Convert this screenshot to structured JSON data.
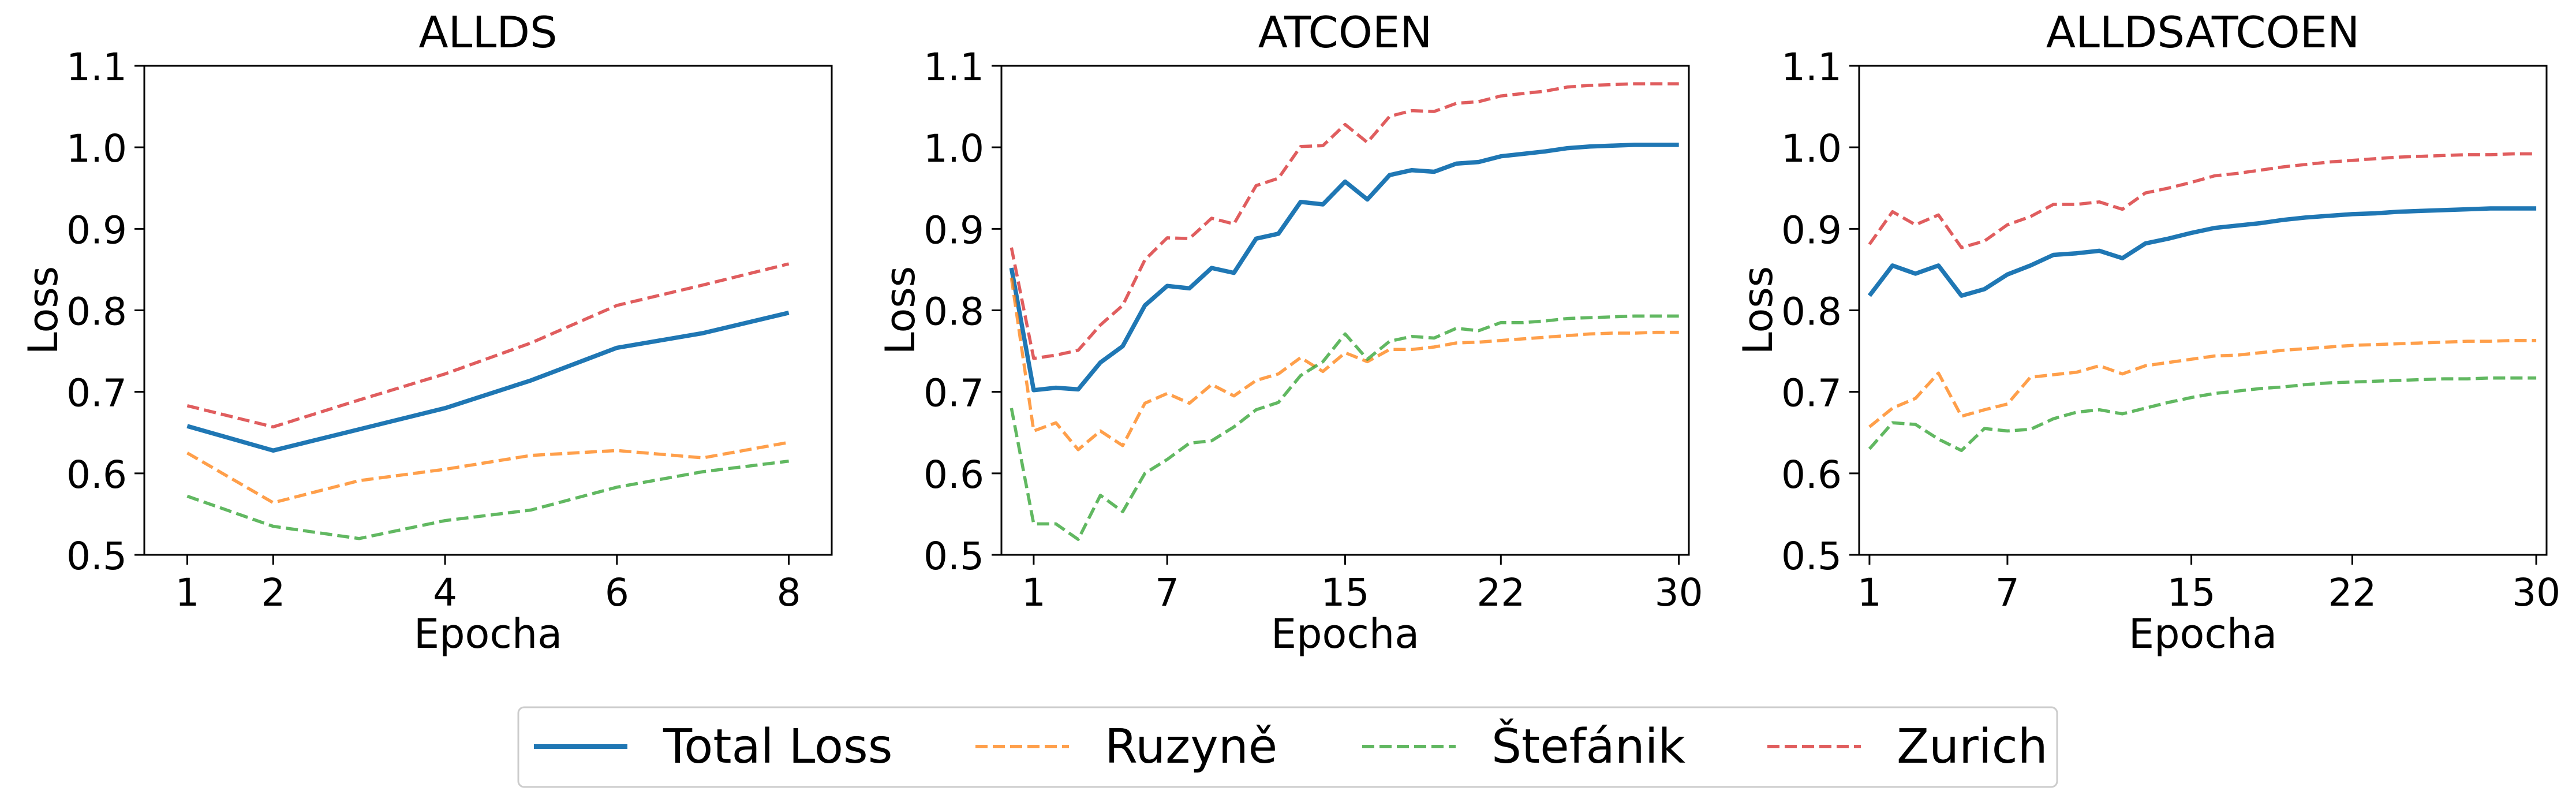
{
  "figure": {
    "legend": {
      "placement": "bottom-center",
      "entries": [
        "Total Loss",
        "Ruzyně",
        "Štefánik",
        "Zurich"
      ]
    },
    "colors": {
      "Total Loss": "#1f77b4",
      "Ruzyně": "#ff7f0e",
      "Štefánik": "#2ca02c",
      "Zurich": "#d62728"
    }
  },
  "chart_data": [
    {
      "type": "line",
      "title": "ALLDS",
      "xlabel": "Epocha",
      "ylabel": "Loss",
      "xlim": [
        0.5,
        8.5
      ],
      "ylim": [
        0.5,
        1.1
      ],
      "xticks": [
        1,
        2,
        4,
        6,
        8
      ],
      "yticks": [
        0.5,
        0.6,
        0.7,
        0.8,
        0.9,
        1.0,
        1.1
      ],
      "grid": false,
      "x": [
        1,
        2,
        3,
        4,
        5,
        6,
        7,
        8
      ],
      "series": [
        {
          "name": "Total Loss",
          "style": "solid",
          "values": [
            0.658,
            0.628,
            0.654,
            0.68,
            0.714,
            0.754,
            0.772,
            0.797
          ]
        },
        {
          "name": "Ruzyně",
          "style": "dashed",
          "values": [
            0.625,
            0.564,
            0.591,
            0.605,
            0.622,
            0.628,
            0.619,
            0.638
          ]
        },
        {
          "name": "Štefánik",
          "style": "dashed",
          "values": [
            0.572,
            0.535,
            0.52,
            0.542,
            0.555,
            0.583,
            0.602,
            0.615
          ]
        },
        {
          "name": "Zurich",
          "style": "dashed",
          "values": [
            0.683,
            0.657,
            0.69,
            0.722,
            0.76,
            0.806,
            0.831,
            0.857
          ]
        }
      ]
    },
    {
      "type": "line",
      "title": "ATCOEN",
      "xlabel": "Epocha",
      "ylabel": "Loss",
      "xlim": [
        -0.45,
        30.45
      ],
      "ylim": [
        0.5,
        1.1
      ],
      "xticks": [
        1,
        7,
        15,
        22,
        30
      ],
      "yticks": [
        0.5,
        0.6,
        0.7,
        0.8,
        0.9,
        1.0,
        1.1
      ],
      "grid": false,
      "x": [
        0,
        1,
        2,
        3,
        4,
        5,
        6,
        7,
        8,
        9,
        10,
        11,
        12,
        13,
        14,
        15,
        16,
        17,
        18,
        19,
        20,
        21,
        22,
        23,
        24,
        25,
        26,
        27,
        28,
        29,
        30
      ],
      "series": [
        {
          "name": "Total Loss",
          "style": "solid",
          "values": [
            0.852,
            0.702,
            0.705,
            0.703,
            0.736,
            0.756,
            0.806,
            0.83,
            0.827,
            0.852,
            0.846,
            0.888,
            0.894,
            0.933,
            0.93,
            0.958,
            0.936,
            0.966,
            0.972,
            0.97,
            0.98,
            0.982,
            0.989,
            0.992,
            0.995,
            0.999,
            1.001,
            1.002,
            1.003,
            1.003,
            1.003
          ]
        },
        {
          "name": "Ruzyně",
          "style": "dashed",
          "values": [
            0.84,
            0.652,
            0.662,
            0.629,
            0.652,
            0.634,
            0.686,
            0.698,
            0.686,
            0.709,
            0.695,
            0.714,
            0.722,
            0.742,
            0.725,
            0.748,
            0.737,
            0.752,
            0.752,
            0.755,
            0.76,
            0.761,
            0.763,
            0.765,
            0.767,
            0.769,
            0.771,
            0.772,
            0.772,
            0.773,
            0.773
          ]
        },
        {
          "name": "Štefánik",
          "style": "dashed",
          "values": [
            0.68,
            0.538,
            0.538,
            0.519,
            0.573,
            0.553,
            0.6,
            0.617,
            0.637,
            0.64,
            0.657,
            0.678,
            0.687,
            0.72,
            0.737,
            0.771,
            0.74,
            0.762,
            0.768,
            0.766,
            0.778,
            0.775,
            0.785,
            0.785,
            0.787,
            0.79,
            0.791,
            0.792,
            0.793,
            0.793,
            0.793
          ]
        },
        {
          "name": "Zurich",
          "style": "dashed",
          "values": [
            0.877,
            0.741,
            0.745,
            0.751,
            0.782,
            0.806,
            0.862,
            0.889,
            0.888,
            0.913,
            0.906,
            0.953,
            0.962,
            1.001,
            1.002,
            1.028,
            1.006,
            1.038,
            1.045,
            1.044,
            1.054,
            1.056,
            1.063,
            1.066,
            1.069,
            1.074,
            1.076,
            1.077,
            1.078,
            1.078,
            1.078
          ]
        }
      ]
    },
    {
      "type": "line",
      "title": "ALLDSATCOEN",
      "xlabel": "Epocha",
      "ylabel": "Loss",
      "xlim": [
        0.55,
        30.45
      ],
      "ylim": [
        0.5,
        1.1
      ],
      "xticks": [
        1,
        7,
        15,
        22,
        30
      ],
      "yticks": [
        0.5,
        0.6,
        0.7,
        0.8,
        0.9,
        1.0,
        1.1
      ],
      "grid": false,
      "x": [
        1,
        2,
        3,
        4,
        5,
        6,
        7,
        8,
        9,
        10,
        11,
        12,
        13,
        14,
        15,
        16,
        17,
        18,
        19,
        20,
        21,
        22,
        23,
        24,
        25,
        26,
        27,
        28,
        29,
        30
      ],
      "series": [
        {
          "name": "Total Loss",
          "style": "solid",
          "values": [
            0.818,
            0.855,
            0.845,
            0.855,
            0.818,
            0.826,
            0.844,
            0.855,
            0.868,
            0.87,
            0.873,
            0.864,
            0.882,
            0.888,
            0.895,
            0.901,
            0.904,
            0.907,
            0.911,
            0.914,
            0.916,
            0.918,
            0.919,
            0.921,
            0.922,
            0.923,
            0.924,
            0.925,
            0.925,
            0.925
          ]
        },
        {
          "name": "Ruzyně",
          "style": "dashed",
          "values": [
            0.657,
            0.68,
            0.692,
            0.723,
            0.67,
            0.678,
            0.685,
            0.718,
            0.721,
            0.724,
            0.732,
            0.722,
            0.732,
            0.736,
            0.74,
            0.744,
            0.745,
            0.748,
            0.751,
            0.753,
            0.755,
            0.757,
            0.758,
            0.759,
            0.76,
            0.761,
            0.762,
            0.762,
            0.763,
            0.763
          ]
        },
        {
          "name": "Štefánik",
          "style": "dashed",
          "values": [
            0.63,
            0.662,
            0.66,
            0.642,
            0.628,
            0.655,
            0.652,
            0.654,
            0.667,
            0.675,
            0.678,
            0.673,
            0.68,
            0.687,
            0.693,
            0.698,
            0.701,
            0.704,
            0.706,
            0.709,
            0.711,
            0.712,
            0.713,
            0.714,
            0.715,
            0.716,
            0.716,
            0.717,
            0.717,
            0.717
          ]
        },
        {
          "name": "Zurich",
          "style": "dashed",
          "values": [
            0.881,
            0.921,
            0.905,
            0.917,
            0.877,
            0.885,
            0.905,
            0.915,
            0.93,
            0.93,
            0.933,
            0.924,
            0.944,
            0.95,
            0.957,
            0.965,
            0.968,
            0.972,
            0.976,
            0.979,
            0.982,
            0.984,
            0.986,
            0.988,
            0.989,
            0.99,
            0.991,
            0.991,
            0.992,
            0.992
          ]
        }
      ]
    }
  ]
}
